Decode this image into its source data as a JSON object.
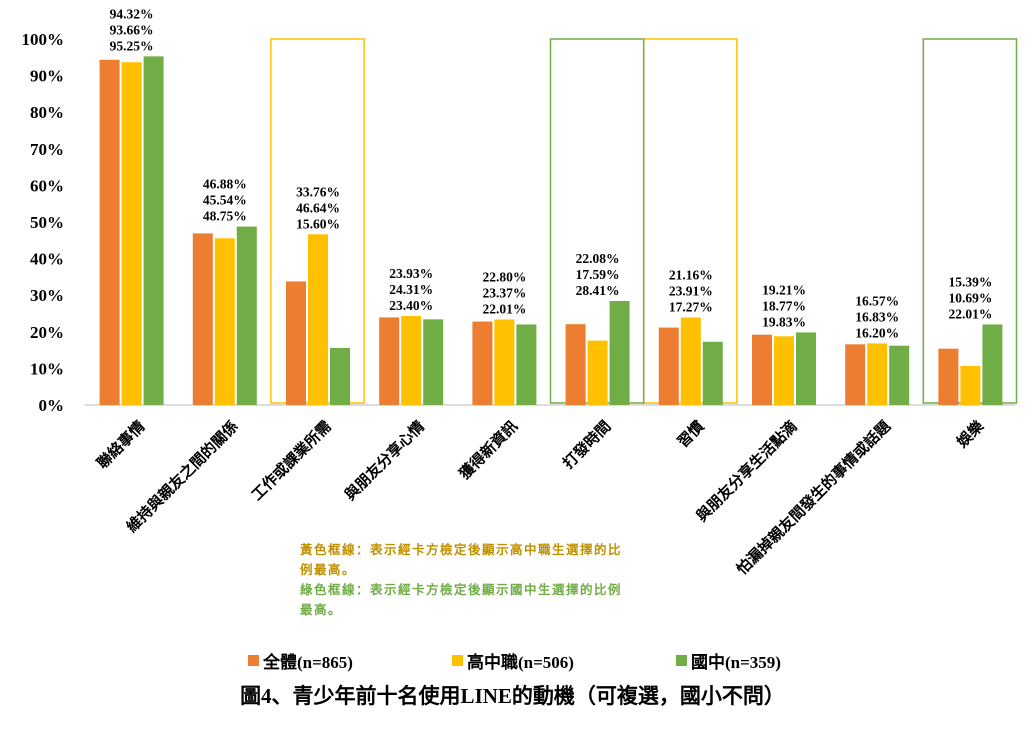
{
  "chart_data": {
    "type": "bar",
    "title": "圖4、青少年前十名使用LINE的動機（可複選，國小不問）",
    "categories": [
      "聯絡事情",
      "維持與親友之間的關係",
      "工作或課業所需",
      "與朋友分享心情",
      "獲得新資訊",
      "打發時間",
      "習慣",
      "與朋友分享生活點滴",
      "怕漏掉親友間發生的事情或話題",
      "娛樂"
    ],
    "series": [
      {
        "name": "全體(n=865)",
        "color": "#ED7D31",
        "values": [
          94.32,
          46.88,
          33.76,
          23.93,
          22.8,
          22.08,
          21.16,
          19.21,
          16.57,
          15.39
        ]
      },
      {
        "name": "高中職(n=506)",
        "color": "#FFC000",
        "values": [
          93.66,
          45.54,
          46.64,
          24.31,
          23.37,
          17.59,
          23.91,
          18.77,
          16.83,
          10.69
        ]
      },
      {
        "name": "國中(n=359)",
        "color": "#70AD47",
        "values": [
          95.25,
          48.75,
          15.6,
          23.4,
          22.01,
          28.41,
          17.27,
          19.83,
          16.2,
          22.01
        ]
      }
    ],
    "ylim": [
      0,
      100
    ],
    "yticks": [
      "0%",
      "10%",
      "20%",
      "30%",
      "40%",
      "50%",
      "60%",
      "70%",
      "80%",
      "90%",
      "100%"
    ],
    "highlight_yellow": [
      2,
      6
    ],
    "highlight_green": [
      5,
      9
    ],
    "legend": "bottom"
  },
  "notes": {
    "yellow": "黃色框線：表示經卡方檢定後顯示高中職生選擇的比例最高。",
    "green": "綠色框線：表示經卡方檢定後顯示國中生選擇的比例最高。"
  }
}
